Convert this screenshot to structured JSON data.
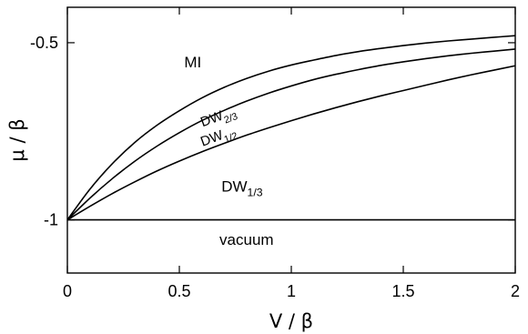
{
  "chart_data": {
    "type": "line",
    "xlabel": "V / β",
    "ylabel": "μ / β",
    "xlim": [
      0,
      2
    ],
    "ylim": [
      -1.15,
      -0.4
    ],
    "y_axis_inverted": false,
    "x_ticks": [
      {
        "value": 0,
        "label": "0"
      },
      {
        "value": 0.5,
        "label": "0.5"
      },
      {
        "value": 1,
        "label": "1"
      },
      {
        "value": 1.5,
        "label": "1.5"
      },
      {
        "value": 2,
        "label": "2"
      }
    ],
    "y_ticks": [
      {
        "value": -0.5,
        "label": "-0.5"
      },
      {
        "value": -1,
        "label": "-1"
      }
    ],
    "series": [
      {
        "name": "",
        "x": [
          0,
          0.1,
          0.2,
          0.3,
          0.4,
          0.5,
          0.6,
          0.7,
          0.8,
          0.9,
          1.0,
          1.1,
          1.2,
          1.3,
          1.4,
          1.5,
          1.6,
          1.7,
          1.8,
          1.9,
          2.0
        ],
        "y": [
          -1.0,
          -0.914,
          -0.842,
          -0.782,
          -0.733,
          -0.692,
          -0.656,
          -0.626,
          -0.601,
          -0.58,
          -0.563,
          -0.549,
          -0.536,
          -0.525,
          -0.516,
          -0.508,
          -0.501,
          -0.495,
          -0.49,
          -0.485,
          -0.48
        ]
      },
      {
        "name": "",
        "x": [
          0,
          0.1,
          0.2,
          0.3,
          0.4,
          0.5,
          0.6,
          0.7,
          0.8,
          0.9,
          1.0,
          1.1,
          1.2,
          1.3,
          1.4,
          1.5,
          1.6,
          1.7,
          1.8,
          1.9,
          2.0
        ],
        "y": [
          -1.0,
          -0.939,
          -0.884,
          -0.835,
          -0.792,
          -0.754,
          -0.72,
          -0.691,
          -0.665,
          -0.642,
          -0.622,
          -0.604,
          -0.589,
          -0.576,
          -0.564,
          -0.554,
          -0.545,
          -0.537,
          -0.53,
          -0.524,
          -0.518
        ]
      },
      {
        "name": "",
        "x": [
          0,
          0.1,
          0.2,
          0.3,
          0.4,
          0.5,
          0.6,
          0.7,
          0.8,
          0.9,
          1.0,
          1.1,
          1.2,
          1.3,
          1.4,
          1.5,
          1.6,
          1.7,
          1.8,
          1.9,
          2.0
        ],
        "y": [
          -1.0,
          -0.962,
          -0.926,
          -0.893,
          -0.862,
          -0.834,
          -0.808,
          -0.784,
          -0.761,
          -0.74,
          -0.72,
          -0.701,
          -0.683,
          -0.666,
          -0.65,
          -0.635,
          -0.62,
          -0.605,
          -0.591,
          -0.578,
          -0.565
        ]
      },
      {
        "name": "",
        "x": [
          0,
          2
        ],
        "y": [
          -1.0,
          -1.0
        ]
      }
    ],
    "region_labels": [
      {
        "text": "MI",
        "x": 0.56,
        "y": -0.57
      },
      {
        "text": "DW",
        "sub": "1/3",
        "x": 0.78,
        "y": -0.92
      },
      {
        "text": "vacuum",
        "x": 0.8,
        "y": -1.07
      }
    ],
    "curve_labels": [
      {
        "text": "DW",
        "sub": "2/3",
        "x": 0.68,
        "y": -0.72,
        "angle": -20
      },
      {
        "text": "DW",
        "sub": "1/2",
        "x": 0.68,
        "y": -0.775,
        "angle": -20
      }
    ],
    "grid": false,
    "legend": "none"
  }
}
